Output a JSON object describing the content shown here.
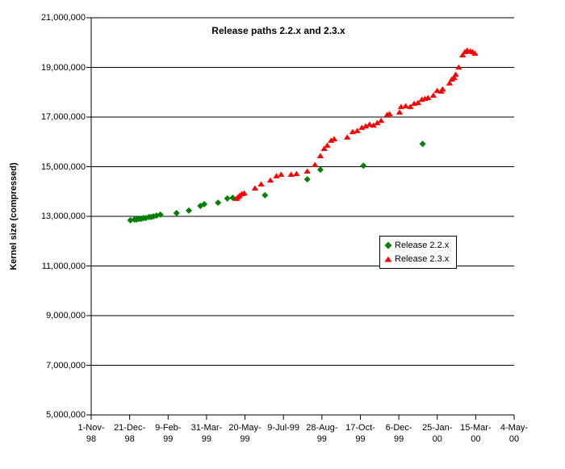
{
  "chart_data": {
    "type": "scatter",
    "title": "Release paths 2.2.x and 2.3.x",
    "ylabel": "Kernel size (compressed)",
    "xlabel": "",
    "ylim": [
      5000000,
      21000000
    ],
    "yticks": [
      5000000,
      7000000,
      9000000,
      11000000,
      13000000,
      15000000,
      17000000,
      19000000,
      21000000
    ],
    "x_axis_note": "x values are days since 1-Nov-1998; ticks every 50 days",
    "xlim_days": [
      0,
      550
    ],
    "xtick_days": [
      0,
      50,
      100,
      150,
      200,
      250,
      300,
      350,
      400,
      450,
      500,
      550
    ],
    "xtick_labels": [
      [
        "1-Nov-",
        "98"
      ],
      [
        "21-Dec-",
        "98"
      ],
      [
        "9-Feb-",
        "99"
      ],
      [
        "31-Mar-",
        "99"
      ],
      [
        "20-May-",
        "99"
      ],
      [
        "9-Jul-99"
      ],
      [
        "28-Aug-",
        "99"
      ],
      [
        "17-Oct-",
        "99"
      ],
      [
        "6-Dec-",
        "99"
      ],
      [
        "25-Jan-",
        "00"
      ],
      [
        "15-Mar-",
        "00"
      ],
      [
        "4-May-",
        "00"
      ]
    ],
    "grid": "horizontal",
    "legend_position": "middle-right",
    "series": [
      {
        "name": "Release 2.2.x",
        "marker": "diamond",
        "color": "#008000",
        "points": [
          [
            51,
            12840000
          ],
          [
            56,
            12870000
          ],
          [
            59,
            12870000
          ],
          [
            62,
            12900000
          ],
          [
            65,
            12900000
          ],
          [
            68,
            12930000
          ],
          [
            71,
            12930000
          ],
          [
            75,
            12970000
          ],
          [
            78,
            12970000
          ],
          [
            81,
            13000000
          ],
          [
            85,
            13030000
          ],
          [
            90,
            13070000
          ],
          [
            111,
            13130000
          ],
          [
            127,
            13230000
          ],
          [
            142,
            13420000
          ],
          [
            147,
            13490000
          ],
          [
            165,
            13550000
          ],
          [
            177,
            13720000
          ],
          [
            184,
            13750000
          ],
          [
            226,
            13850000
          ],
          [
            281,
            14490000
          ],
          [
            298,
            14880000
          ],
          [
            354,
            15040000
          ],
          [
            431,
            15920000
          ]
        ]
      },
      {
        "name": "Release 2.3.x",
        "marker": "triangle",
        "color": "#FF0000",
        "points": [
          [
            189,
            13720000
          ],
          [
            191,
            13780000
          ],
          [
            193,
            13840000
          ],
          [
            196,
            13910000
          ],
          [
            199,
            13940000
          ],
          [
            213,
            14140000
          ],
          [
            221,
            14300000
          ],
          [
            233,
            14460000
          ],
          [
            241,
            14630000
          ],
          [
            247,
            14690000
          ],
          [
            260,
            14690000
          ],
          [
            267,
            14720000
          ],
          [
            281,
            14820000
          ],
          [
            291,
            15080000
          ],
          [
            298,
            15440000
          ],
          [
            303,
            15730000
          ],
          [
            307,
            15860000
          ],
          [
            312,
            16060000
          ],
          [
            316,
            16120000
          ],
          [
            333,
            16190000
          ],
          [
            340,
            16410000
          ],
          [
            346,
            16450000
          ],
          [
            352,
            16580000
          ],
          [
            357,
            16640000
          ],
          [
            362,
            16710000
          ],
          [
            367,
            16670000
          ],
          [
            372,
            16770000
          ],
          [
            377,
            16860000
          ],
          [
            385,
            17100000
          ],
          [
            388,
            17130000
          ],
          [
            401,
            17200000
          ],
          [
            403,
            17420000
          ],
          [
            409,
            17450000
          ],
          [
            415,
            17420000
          ],
          [
            420,
            17550000
          ],
          [
            425,
            17580000
          ],
          [
            430,
            17710000
          ],
          [
            434,
            17750000
          ],
          [
            438,
            17780000
          ],
          [
            445,
            17880000
          ],
          [
            450,
            18070000
          ],
          [
            455,
            18040000
          ],
          [
            457,
            18130000
          ],
          [
            466,
            18370000
          ],
          [
            469,
            18530000
          ],
          [
            472,
            18590000
          ],
          [
            474,
            18720000
          ],
          [
            478,
            19010000
          ],
          [
            483,
            19500000
          ],
          [
            486,
            19630000
          ],
          [
            489,
            19690000
          ],
          [
            493,
            19660000
          ],
          [
            496,
            19630000
          ],
          [
            499,
            19570000
          ]
        ]
      }
    ],
    "axis_color": "#000000",
    "grid_color": "#000000",
    "background_color": "#FFFFFF"
  },
  "legend": {
    "items": [
      {
        "label": "Release 2.2.x"
      },
      {
        "label": "Release 2.3.x"
      }
    ]
  }
}
